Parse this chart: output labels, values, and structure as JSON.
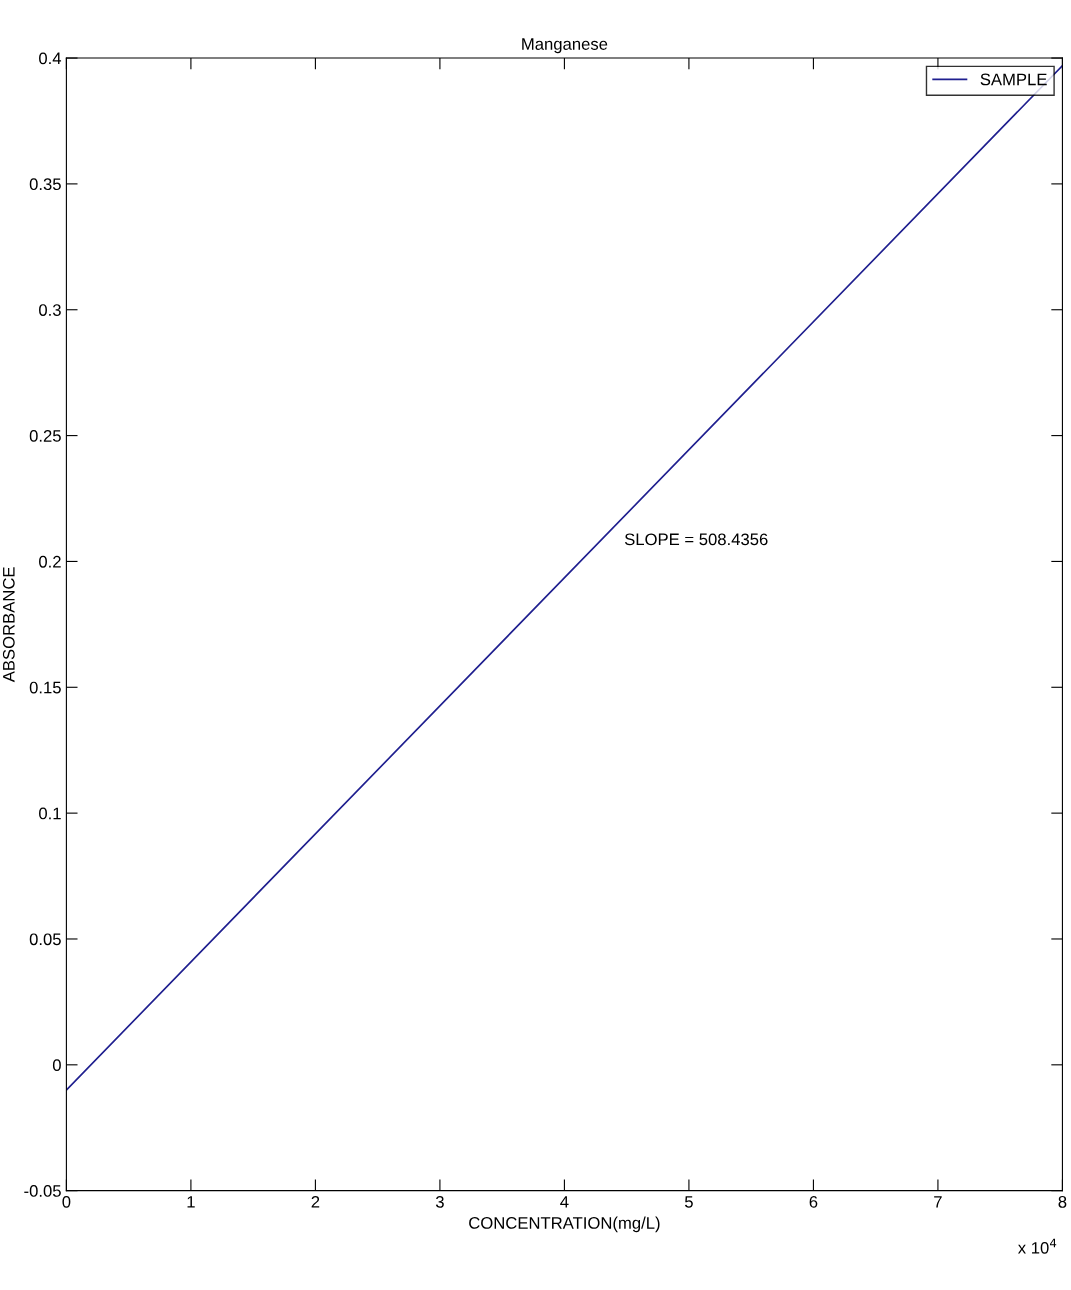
{
  "chart_data": {
    "type": "line",
    "title": "Manganese",
    "xlabel": "CONCENTRATION(mg/L)",
    "ylabel": "ABSORBANCE",
    "x": [
      0,
      8
    ],
    "series": [
      {
        "name": "SAMPLE",
        "color": "#1f1f8f",
        "values": [
          -0.01,
          0.397
        ]
      }
    ],
    "xlim": [
      0,
      8
    ],
    "ylim": [
      -0.05,
      0.4
    ],
    "xticks": [
      0,
      1,
      2,
      3,
      4,
      5,
      6,
      7,
      8
    ],
    "yticks": [
      {
        "value": -0.05,
        "label": "-0.05"
      },
      0,
      0.05,
      0.1,
      0.15,
      0.2,
      0.25,
      0.3,
      0.35,
      0.4
    ],
    "annotations": [
      "SLOPE = 508.4356",
      "x 10$^{4}$"
    ],
    "legend": "top right",
    "grid": false,
    "marker": "none",
    "line_style": "solid"
  }
}
